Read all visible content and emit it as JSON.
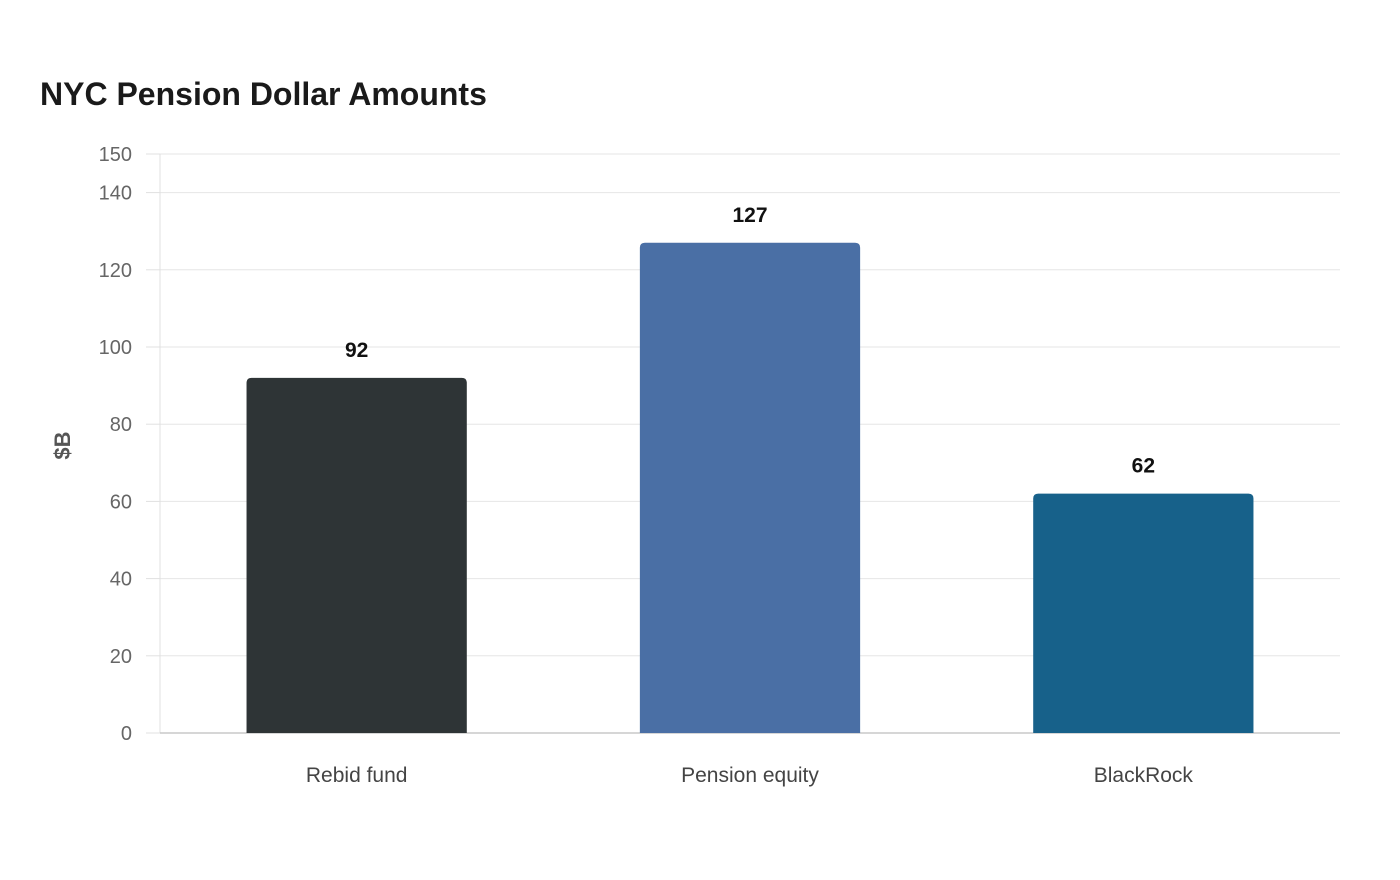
{
  "chart_data": {
    "type": "bar",
    "title": "NYC Pension Dollar Amounts",
    "xlabel": "",
    "ylabel": "$B",
    "categories": [
      "Rebid fund",
      "Pension equity",
      "BlackRock"
    ],
    "values": [
      92,
      127,
      62
    ],
    "colors": [
      "#2e3436",
      "#4a6fa5",
      "#17618a"
    ],
    "ylim": [
      0,
      150
    ],
    "yticks": [
      0,
      20,
      40,
      60,
      80,
      100,
      120,
      140,
      150
    ],
    "grid": true,
    "legend": "none"
  }
}
